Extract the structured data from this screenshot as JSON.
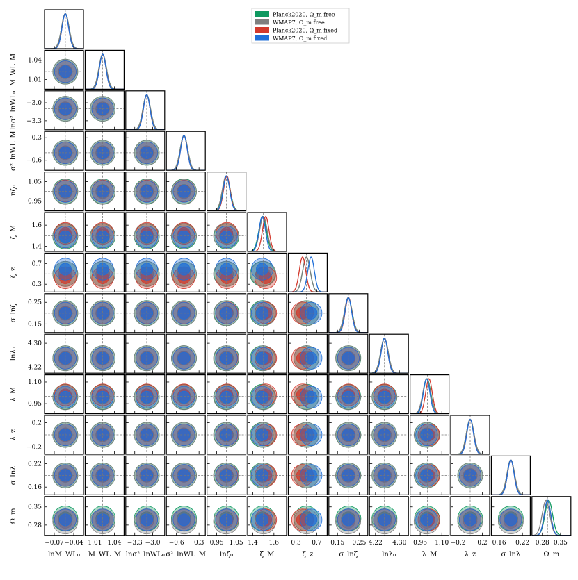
{
  "chart_data": {
    "type": "corner",
    "parameters": [
      {
        "name": "lnM_WL0",
        "label": "lnM_WL₀",
        "ylabel": "",
        "truth": -0.053,
        "range": [
          -0.085,
          -0.025
        ],
        "ticks": [
          -0.07,
          -0.04
        ],
        "tick_labels": [
          "−0.07",
          "−0.04"
        ]
      },
      {
        "name": "M_WLM",
        "label": "M_WL_M",
        "ylabel": "M_WL_M",
        "truth": 1.022,
        "range": [
          0.995,
          1.055
        ],
        "ticks": [
          1.01,
          1.04
        ],
        "tick_labels": [
          "1.01",
          "1.04"
        ]
      },
      {
        "name": "ln_sigma2_WL0",
        "label": "lnσ²_lnWL₀",
        "ylabel": "lnσ²_lnWL₀",
        "truth": -3.1,
        "range": [
          -3.45,
          -2.8
        ],
        "ticks": [
          -3.3,
          -3.0
        ],
        "tick_labels": [
          "−3.3",
          "−3.0"
        ]
      },
      {
        "name": "sigma2_lnWLM",
        "label": "σ²_lnWL_M",
        "ylabel": "σ²_lnWL_M",
        "truth": -0.3,
        "range": [
          -1.0,
          0.55
        ],
        "ticks": [
          -0.6,
          0.3
        ],
        "tick_labels": [
          "−0.6",
          "0.3"
        ]
      },
      {
        "name": "ln_zeta0",
        "label": "lnζ₀",
        "ylabel": "lnζ₀",
        "truth": 1.0,
        "range": [
          0.9,
          1.1
        ],
        "ticks": [
          0.95,
          1.05
        ],
        "tick_labels": [
          "0.95",
          "1.05"
        ]
      },
      {
        "name": "zeta_M",
        "label": "ζ_M",
        "ylabel": "ζ_M",
        "truth": 1.5,
        "range": [
          1.35,
          1.72
        ],
        "ticks": [
          1.4,
          1.6
        ],
        "tick_labels": [
          "1.4",
          "1.6"
        ]
      },
      {
        "name": "zeta_z",
        "label": "ζ_z",
        "ylabel": "ζ_z",
        "truth": 0.5,
        "range": [
          0.15,
          0.9
        ],
        "ticks": [
          0.3,
          0.7
        ],
        "tick_labels": [
          "0.3",
          "0.7"
        ]
      },
      {
        "name": "sigma_lnzeta",
        "label": "σ_lnζ",
        "ylabel": "σ_lnζ",
        "truth": 0.2,
        "range": [
          0.11,
          0.29
        ],
        "ticks": [
          0.15,
          0.25
        ],
        "tick_labels": [
          "0.15",
          "0.25"
        ]
      },
      {
        "name": "ln_lambda0",
        "label": "lnλ₀",
        "ylabel": "lnλ₀",
        "truth": 4.25,
        "range": [
          4.2,
          4.33
        ],
        "ticks": [
          4.22,
          4.3
        ],
        "tick_labels": [
          "4.22",
          "4.30"
        ]
      },
      {
        "name": "lambda_M",
        "label": "λ_M",
        "ylabel": "λ_M",
        "truth": 1.0,
        "range": [
          0.88,
          1.15
        ],
        "ticks": [
          0.95,
          1.1
        ],
        "tick_labels": [
          "0.95",
          "1.10"
        ]
      },
      {
        "name": "lambda_z",
        "label": "λ_z",
        "ylabel": "λ_z",
        "truth": 0.0,
        "range": [
          -0.32,
          0.32
        ],
        "ticks": [
          -0.2,
          0.2
        ],
        "tick_labels": [
          "−0.2",
          "0.2"
        ]
      },
      {
        "name": "sigma_lnlambda",
        "label": "σ_lnλ",
        "ylabel": "σ_lnλ",
        "truth": 0.19,
        "range": [
          0.14,
          0.24
        ],
        "ticks": [
          0.16,
          0.22
        ],
        "tick_labels": [
          "0.16",
          "0.22"
        ]
      },
      {
        "name": "Omega_m",
        "label": "Ω_m",
        "ylabel": "Ω_m",
        "truth": 0.3,
        "range": [
          0.24,
          0.39
        ],
        "ticks": [
          0.28,
          0.35
        ],
        "tick_labels": [
          "0.28",
          "0.35"
        ]
      }
    ],
    "series": [
      {
        "name": "Planck2020, Ω_m free",
        "color": "#0f9960",
        "mean_offset": [
          0,
          0,
          0,
          0,
          0,
          -0.02,
          0.0,
          0.0,
          0.0,
          -0.01,
          0.0,
          0.0,
          0.032
        ],
        "width_scale": 1.15
      },
      {
        "name": "WMAP7, Ω_m free",
        "color": "#7f7f7f",
        "mean_offset": [
          0,
          0,
          0,
          0,
          -0.01,
          0.0,
          0.0,
          -0.005,
          0.0,
          -0.02,
          0.0,
          0.0,
          -0.04
        ],
        "width_scale": 1.15
      },
      {
        "name": "Planck2020, Ω_m fixed",
        "color": "#d3392c",
        "mean_offset": [
          0,
          0,
          0,
          0,
          0.01,
          0.06,
          -0.1,
          0.005,
          0.0,
          0.04,
          0.0,
          0.0,
          0.0
        ],
        "width_scale": 1.0
      },
      {
        "name": "WMAP7, Ω_m fixed",
        "color": "#1f6fd8",
        "mean_offset": [
          0,
          0,
          0,
          0,
          0.0,
          -0.03,
          0.12,
          0.0,
          0.0,
          -0.02,
          0.0,
          0.0,
          0.0
        ],
        "width_scale": 1.0
      }
    ],
    "grid": false,
    "legend_position": "top-right"
  }
}
